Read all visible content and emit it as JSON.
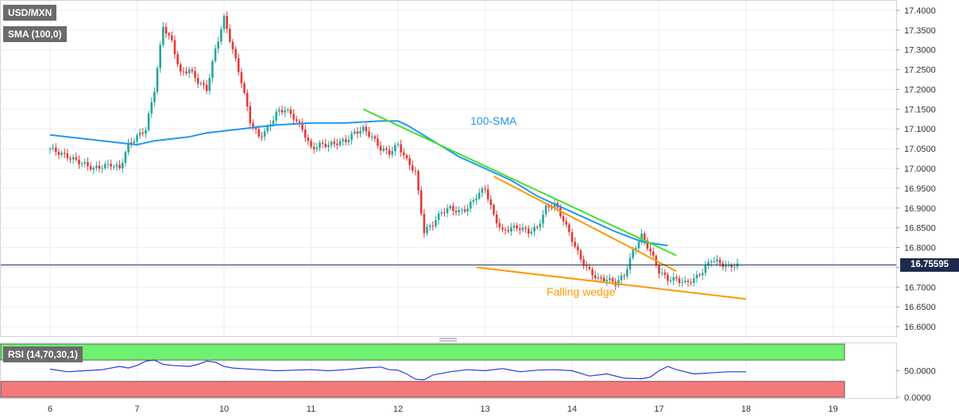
{
  "legend": {
    "symbol": "USD/MXN",
    "sma": "SMA (100,0)",
    "rsi": "RSI (14,70,30,1)"
  },
  "price_tag": "16.75595",
  "annotations": {
    "sma": "100-SMA",
    "wedge": "Falling wedge"
  },
  "colors": {
    "bull": "#26a69a",
    "bear": "#e53935",
    "sma": "#2196f3",
    "green_line": "#43e02c",
    "orange_line": "#ff9800",
    "rsi_line": "#2b3bd1",
    "ob_zone": "#6ff06f",
    "os_zone": "#f47a7a"
  },
  "chart_data": [
    {
      "type": "candlestick",
      "title": "USD/MXN",
      "y_ticks": [
        "17.4000",
        "17.3500",
        "17.3000",
        "17.2500",
        "17.2000",
        "17.1500",
        "17.1000",
        "17.0500",
        "17.0000",
        "16.9500",
        "16.9000",
        "16.8500",
        "16.8000",
        "16.7500",
        "16.7000",
        "16.6500",
        "16.6000"
      ],
      "ylim": [
        16.59,
        17.41
      ],
      "x_ticks": [
        "6",
        "7",
        "10",
        "11",
        "12",
        "13",
        "14",
        "17",
        "18",
        "19"
      ],
      "x_tick_index": [
        0,
        10,
        20,
        30,
        40,
        50,
        60,
        70,
        80,
        90
      ],
      "last_price": 16.75595,
      "ohlc_keyframes": [
        [
          0,
          17.05
        ],
        [
          3,
          17.02
        ],
        [
          5,
          17.0
        ],
        [
          7,
          17.01
        ],
        [
          8,
          17.0
        ],
        [
          9,
          17.06
        ],
        [
          10,
          17.08
        ],
        [
          11,
          17.1
        ],
        [
          12,
          17.2
        ],
        [
          13,
          17.36
        ],
        [
          14,
          17.32
        ],
        [
          15,
          17.24
        ],
        [
          16,
          17.25
        ],
        [
          17,
          17.22
        ],
        [
          18,
          17.2
        ],
        [
          19,
          17.3
        ],
        [
          20,
          17.38
        ],
        [
          21,
          17.3
        ],
        [
          22,
          17.22
        ],
        [
          23,
          17.12
        ],
        [
          24,
          17.08
        ],
        [
          25,
          17.1
        ],
        [
          26,
          17.14
        ],
        [
          27,
          17.15
        ],
        [
          28,
          17.13
        ],
        [
          29,
          17.1
        ],
        [
          30,
          17.05
        ],
        [
          31,
          17.06
        ],
        [
          32,
          17.06
        ],
        [
          34,
          17.07
        ],
        [
          35,
          17.09
        ],
        [
          36,
          17.1
        ],
        [
          37,
          17.08
        ],
        [
          38,
          17.05
        ],
        [
          39,
          17.04
        ],
        [
          40,
          17.06
        ],
        [
          41,
          17.02
        ],
        [
          42,
          16.99
        ],
        [
          43,
          16.84
        ],
        [
          44,
          16.86
        ],
        [
          45,
          16.89
        ],
        [
          46,
          16.9
        ],
        [
          47,
          16.89
        ],
        [
          48,
          16.9
        ],
        [
          49,
          16.93
        ],
        [
          50,
          16.95
        ],
        [
          51,
          16.88
        ],
        [
          52,
          16.84
        ],
        [
          53,
          16.85
        ],
        [
          54,
          16.85
        ],
        [
          55,
          16.84
        ],
        [
          56,
          16.85
        ],
        [
          57,
          16.9
        ],
        [
          58,
          16.91
        ],
        [
          59,
          16.87
        ],
        [
          60,
          16.82
        ],
        [
          61,
          16.77
        ],
        [
          62,
          16.74
        ],
        [
          63,
          16.72
        ],
        [
          64,
          16.72
        ],
        [
          65,
          16.71
        ],
        [
          66,
          16.73
        ],
        [
          67,
          16.79
        ],
        [
          68,
          16.83
        ],
        [
          69,
          16.79
        ],
        [
          70,
          16.74
        ],
        [
          71,
          16.72
        ],
        [
          72,
          16.72
        ],
        [
          73,
          16.71
        ],
        [
          74,
          16.72
        ],
        [
          75,
          16.74
        ],
        [
          76,
          16.77
        ],
        [
          77,
          16.76
        ],
        [
          78,
          16.75
        ],
        [
          79,
          16.76
        ]
      ],
      "series": [
        {
          "name": "100-SMA",
          "x": [
            0,
            4,
            8,
            10,
            12,
            14,
            16,
            18,
            22,
            26,
            30,
            34,
            38,
            40,
            41,
            44,
            47,
            50,
            53,
            56,
            59,
            62,
            65,
            68,
            70,
            71
          ],
          "y": [
            17.085,
            17.075,
            17.065,
            17.06,
            17.07,
            17.075,
            17.08,
            17.09,
            17.1,
            17.11,
            17.115,
            17.115,
            17.12,
            17.12,
            17.11,
            17.07,
            17.03,
            17.0,
            16.97,
            16.93,
            16.9,
            16.87,
            16.84,
            16.815,
            16.808,
            16.805
          ]
        },
        {
          "name": "resistance",
          "x": [
            36,
            72
          ],
          "y": [
            17.15,
            16.78
          ]
        },
        {
          "name": "wedge upper",
          "x": [
            51,
            72
          ],
          "y": [
            16.98,
            16.74
          ]
        },
        {
          "name": "wedge lower",
          "x": [
            49,
            80
          ],
          "y": [
            16.75,
            16.67
          ]
        }
      ]
    },
    {
      "type": "line",
      "title": "RSI (14,70,30,1)",
      "y_ticks": [
        "50.0000",
        "0.0000"
      ],
      "ylim": [
        0,
        100
      ],
      "overbought": 70,
      "oversold": 30,
      "x": [
        0,
        2,
        4,
        6,
        8,
        9,
        10,
        11,
        12,
        13,
        14,
        16,
        17,
        18,
        19,
        20,
        21,
        22,
        24,
        26,
        28,
        30,
        32,
        34,
        36,
        38,
        39,
        40,
        41,
        42,
        43,
        44,
        46,
        48,
        50,
        52,
        54,
        56,
        58,
        60,
        62,
        64,
        66,
        68,
        69,
        70,
        71,
        72,
        74,
        76,
        78,
        80
      ],
      "values": [
        53,
        48,
        50,
        52,
        58,
        55,
        60,
        68,
        70,
        62,
        60,
        58,
        62,
        68,
        66,
        58,
        55,
        54,
        52,
        50,
        51,
        52,
        50,
        52,
        55,
        57,
        52,
        51,
        44,
        34,
        33,
        42,
        48,
        52,
        50,
        54,
        48,
        51,
        52,
        50,
        40,
        44,
        36,
        35,
        38,
        50,
        58,
        52,
        44,
        46,
        48,
        48
      ]
    }
  ]
}
